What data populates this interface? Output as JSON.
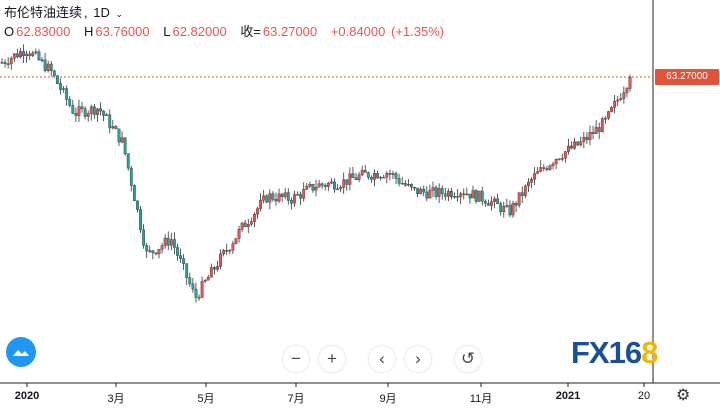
{
  "header": {
    "symbol": "布伦特油连续",
    "interval": "1D",
    "open_label": "O",
    "open": "62.83000",
    "high_label": "H",
    "high": "63.76000",
    "low_label": "L",
    "low": "62.82000",
    "close_label": "收=",
    "close": "63.27000",
    "change": "+0.84000",
    "change_pct": "(+1.35%)"
  },
  "price_tag": "63.27000",
  "x_axis_labels": [
    "2020",
    "3月",
    "5月",
    "7月",
    "9月",
    "11月",
    "2021",
    "20"
  ],
  "controls": {
    "zoom_out": "−",
    "zoom_in": "+",
    "scroll_left": "‹",
    "scroll_right": "›",
    "reset": "↺"
  },
  "brand": {
    "part1": "FX16",
    "part2": "8"
  },
  "colors": {
    "up": "#ef5350",
    "down": "#26a69a",
    "price_line": "#e0523a"
  },
  "chart_data": {
    "type": "candlestick",
    "title": "布伦特油连续",
    "interval": "1D",
    "xlabel": "",
    "ylabel": "",
    "x": [
      "2019-12",
      "2020-01a",
      "2020-01b",
      "2020-02a",
      "2020-02b",
      "2020-03a",
      "2020-03b",
      "2020-04a",
      "2020-04b",
      "2020-05a",
      "2020-05b",
      "2020-06a",
      "2020-06b",
      "2020-07a",
      "2020-07b",
      "2020-08a",
      "2020-08b",
      "2020-09a",
      "2020-09b",
      "2020-10a",
      "2020-10b",
      "2020-11a",
      "2020-11b",
      "2020-12a",
      "2020-12b",
      "2021-01a",
      "2021-01b"
    ],
    "close_path": [
      66.0,
      68.5,
      64.5,
      56.5,
      57.5,
      51.0,
      30.0,
      33.0,
      22.0,
      29.0,
      35.5,
      41.0,
      40.5,
      43.0,
      43.5,
      45.0,
      45.5,
      42.0,
      41.5,
      42.0,
      40.5,
      38.0,
      44.5,
      48.5,
      51.0,
      55.0,
      63.27
    ],
    "last": {
      "open": 62.83,
      "high": 63.76,
      "low": 62.82,
      "close": 63.27,
      "change": 0.84,
      "change_pct": 1.35
    },
    "grid": false,
    "legend": "none"
  }
}
